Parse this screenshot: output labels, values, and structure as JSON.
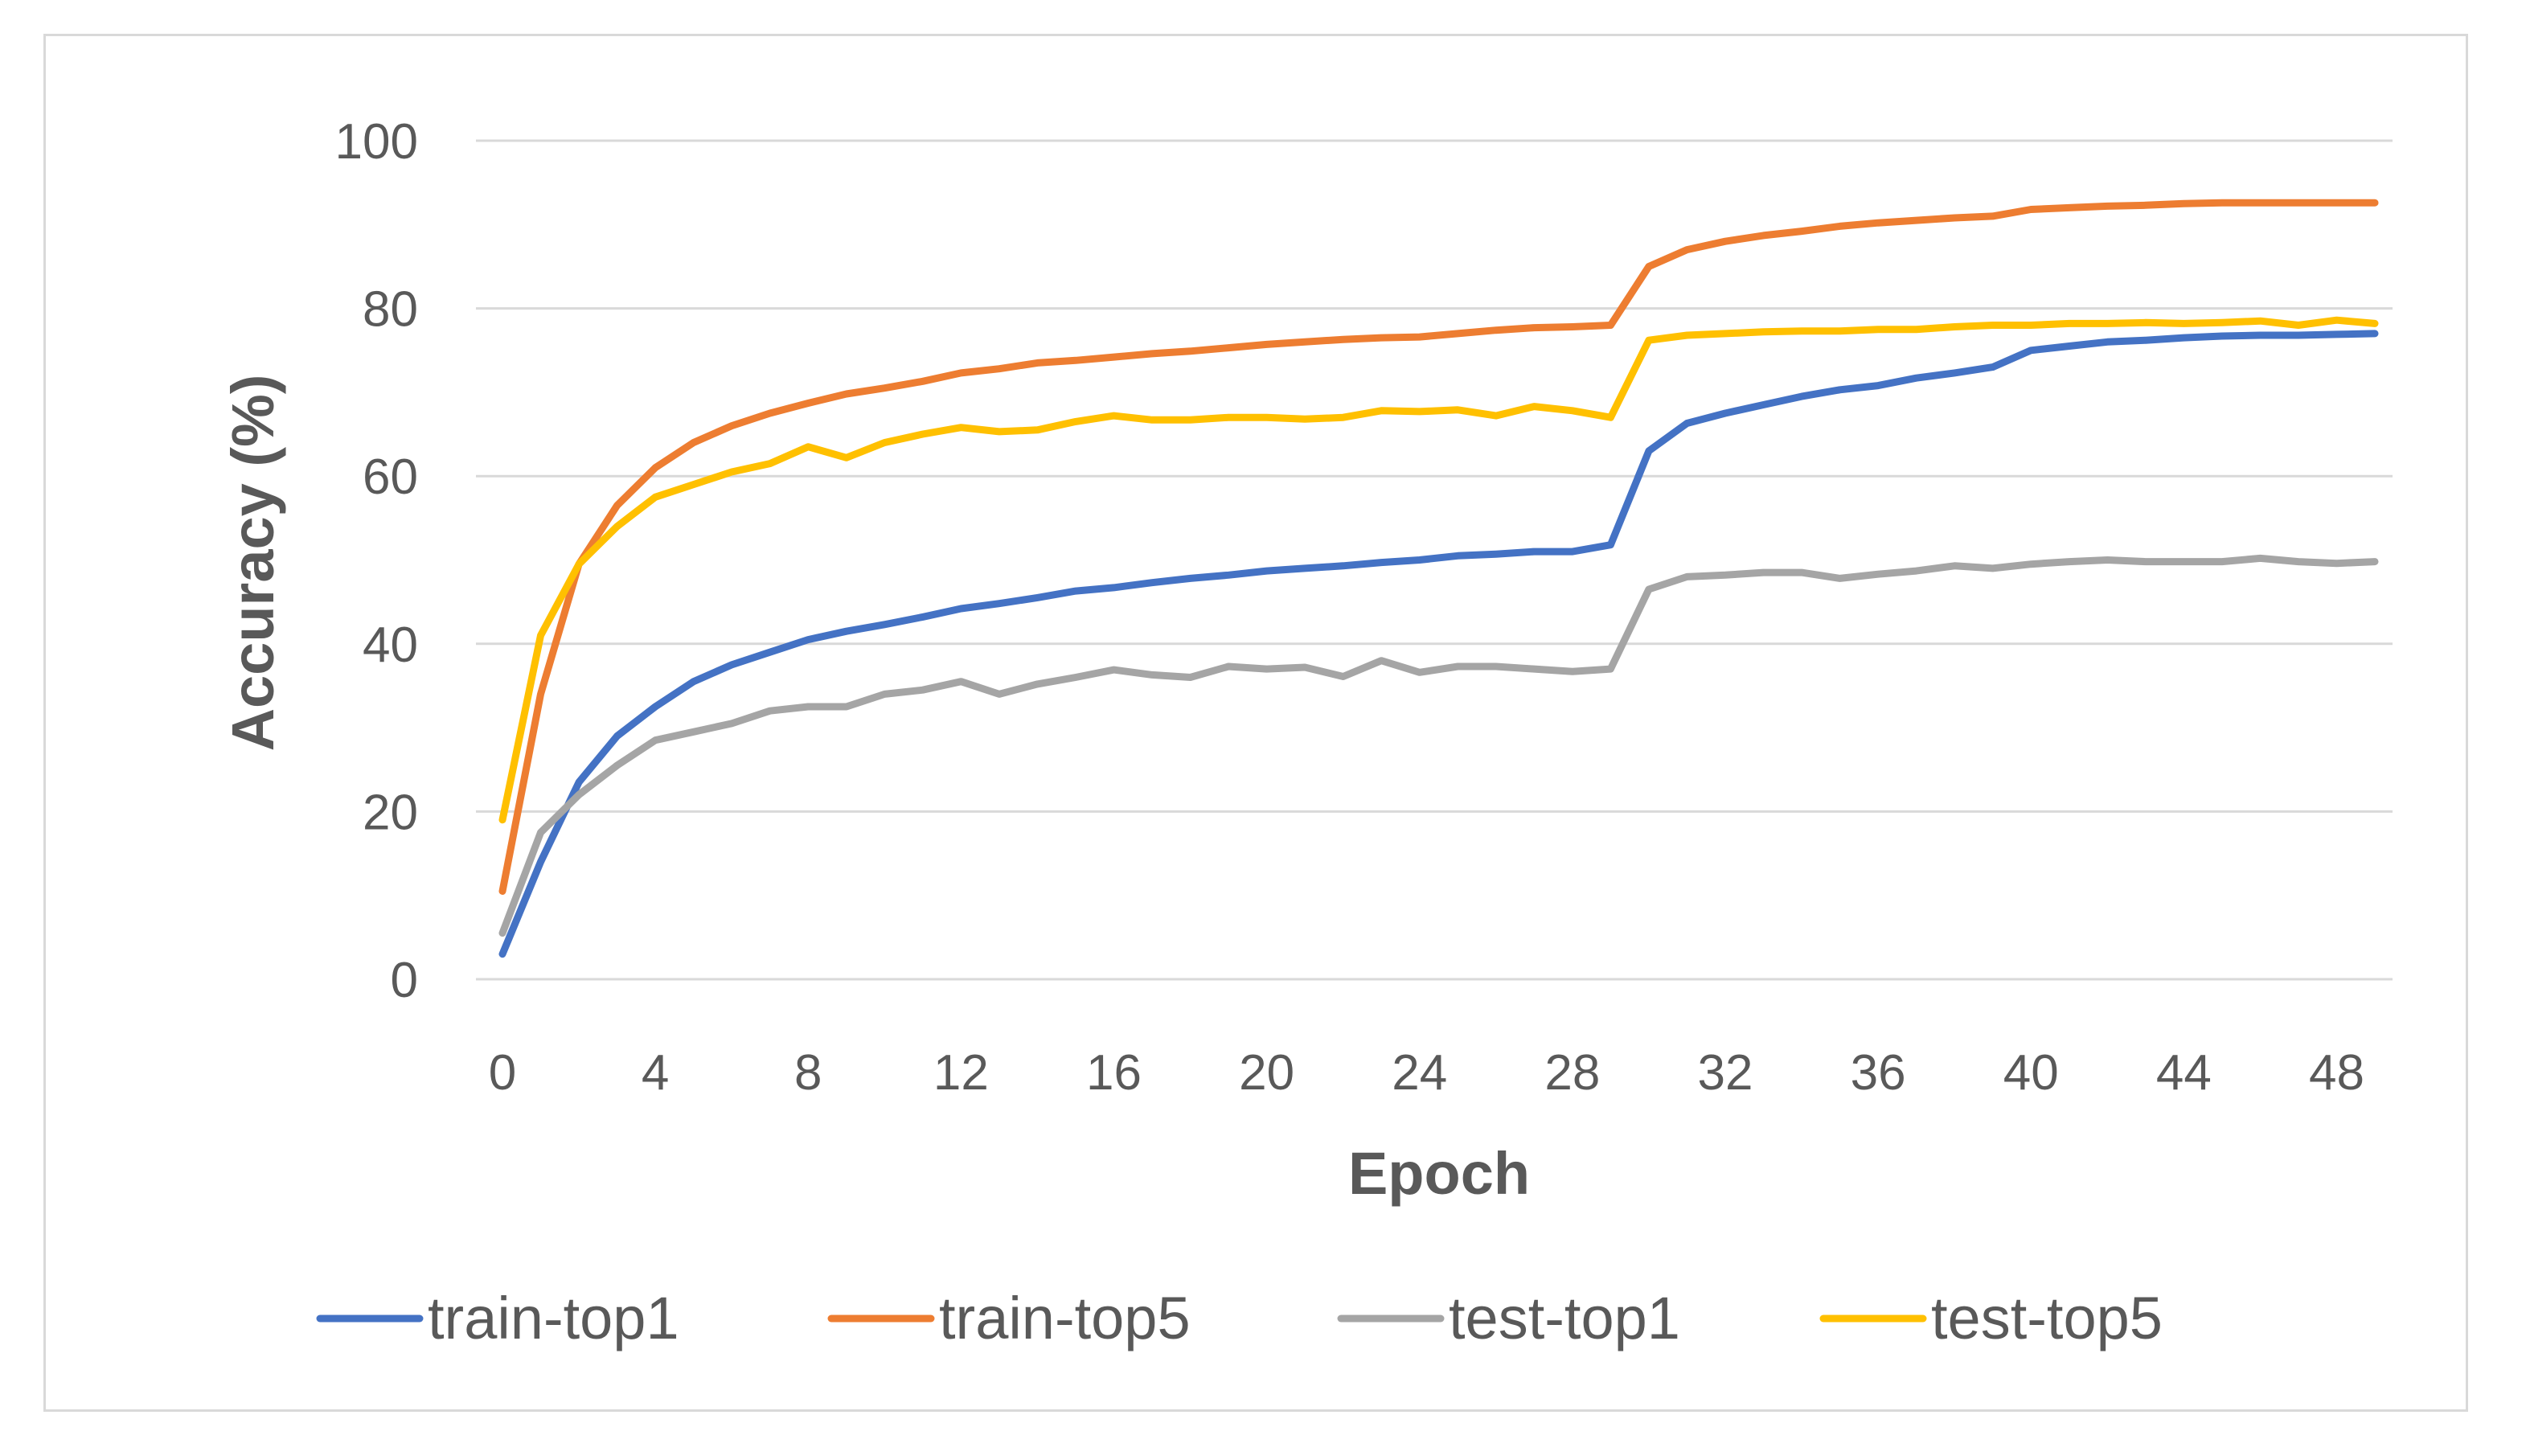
{
  "chart_data": {
    "type": "line",
    "title": "",
    "xlabel": "Epoch",
    "ylabel": "Accuracy (%)",
    "ylim": [
      0,
      100
    ],
    "xlim": [
      0,
      49
    ],
    "xticks": [
      0,
      4,
      8,
      12,
      16,
      20,
      24,
      28,
      32,
      36,
      40,
      44,
      48
    ],
    "yticks": [
      0,
      20,
      40,
      60,
      80,
      100
    ],
    "grid": true,
    "legend_position": "bottom",
    "x": [
      0,
      1,
      2,
      3,
      4,
      5,
      6,
      7,
      8,
      9,
      10,
      11,
      12,
      13,
      14,
      15,
      16,
      17,
      18,
      19,
      20,
      21,
      22,
      23,
      24,
      25,
      26,
      27,
      28,
      29,
      30,
      31,
      32,
      33,
      34,
      35,
      36,
      37,
      38,
      39,
      40,
      41,
      42,
      43,
      44,
      45,
      46,
      47,
      48,
      49
    ],
    "series": [
      {
        "name": "train-top1",
        "color": "#4472c4",
        "values": [
          3,
          14,
          23.5,
          29,
          32.5,
          35.5,
          37.5,
          39,
          40.5,
          41.5,
          42.3,
          43.2,
          44.2,
          44.8,
          45.5,
          46.3,
          46.7,
          47.3,
          47.8,
          48.2,
          48.7,
          49,
          49.3,
          49.7,
          50,
          50.5,
          50.7,
          51,
          51,
          51.8,
          63,
          66.3,
          67.5,
          68.5,
          69.5,
          70.3,
          70.8,
          71.7,
          72.3,
          73,
          75,
          75.5,
          76,
          76.2,
          76.5,
          76.7,
          76.8,
          76.8,
          76.9,
          77
        ]
      },
      {
        "name": "train-top5",
        "color": "#ed7d31",
        "values": [
          10.5,
          34,
          49.5,
          56.5,
          61,
          64,
          66,
          67.5,
          68.7,
          69.8,
          70.5,
          71.3,
          72.3,
          72.8,
          73.5,
          73.8,
          74.2,
          74.6,
          74.9,
          75.3,
          75.7,
          76,
          76.3,
          76.5,
          76.6,
          77,
          77.4,
          77.7,
          77.8,
          78,
          85,
          87,
          88,
          88.7,
          89.2,
          89.8,
          90.2,
          90.5,
          90.8,
          91,
          91.8,
          92,
          92.2,
          92.3,
          92.5,
          92.6,
          92.6,
          92.6,
          92.6,
          92.6
        ]
      },
      {
        "name": "test-top1",
        "color": "#a5a5a5",
        "values": [
          5.5,
          17.5,
          22,
          25.5,
          28.5,
          29.5,
          30.5,
          32,
          32.5,
          32.5,
          34,
          34.5,
          35.5,
          34,
          35.2,
          36,
          36.9,
          36.3,
          36,
          37.3,
          37,
          37.2,
          36.1,
          38,
          36.6,
          37.3,
          37.3,
          37,
          36.7,
          37,
          46.5,
          48,
          48.2,
          48.5,
          48.5,
          47.8,
          48.3,
          48.7,
          49.3,
          49,
          49.5,
          49.8,
          50,
          49.8,
          49.8,
          49.8,
          50.2,
          49.8,
          49.6,
          49.8
        ]
      },
      {
        "name": "test-top5",
        "color": "#ffc000",
        "values": [
          19,
          41,
          49.5,
          54,
          57.5,
          59,
          60.5,
          61.5,
          63.5,
          62.2,
          64,
          65,
          65.8,
          65.3,
          65.5,
          66.5,
          67.2,
          66.7,
          66.7,
          67,
          67,
          66.8,
          67,
          67.8,
          67.7,
          67.9,
          67.2,
          68.3,
          67.8,
          67,
          76.2,
          76.8,
          77,
          77.2,
          77.3,
          77.3,
          77.5,
          77.5,
          77.8,
          78,
          78,
          78.2,
          78.2,
          78.3,
          78.2,
          78.3,
          78.5,
          78,
          78.6,
          78.2
        ]
      }
    ]
  }
}
